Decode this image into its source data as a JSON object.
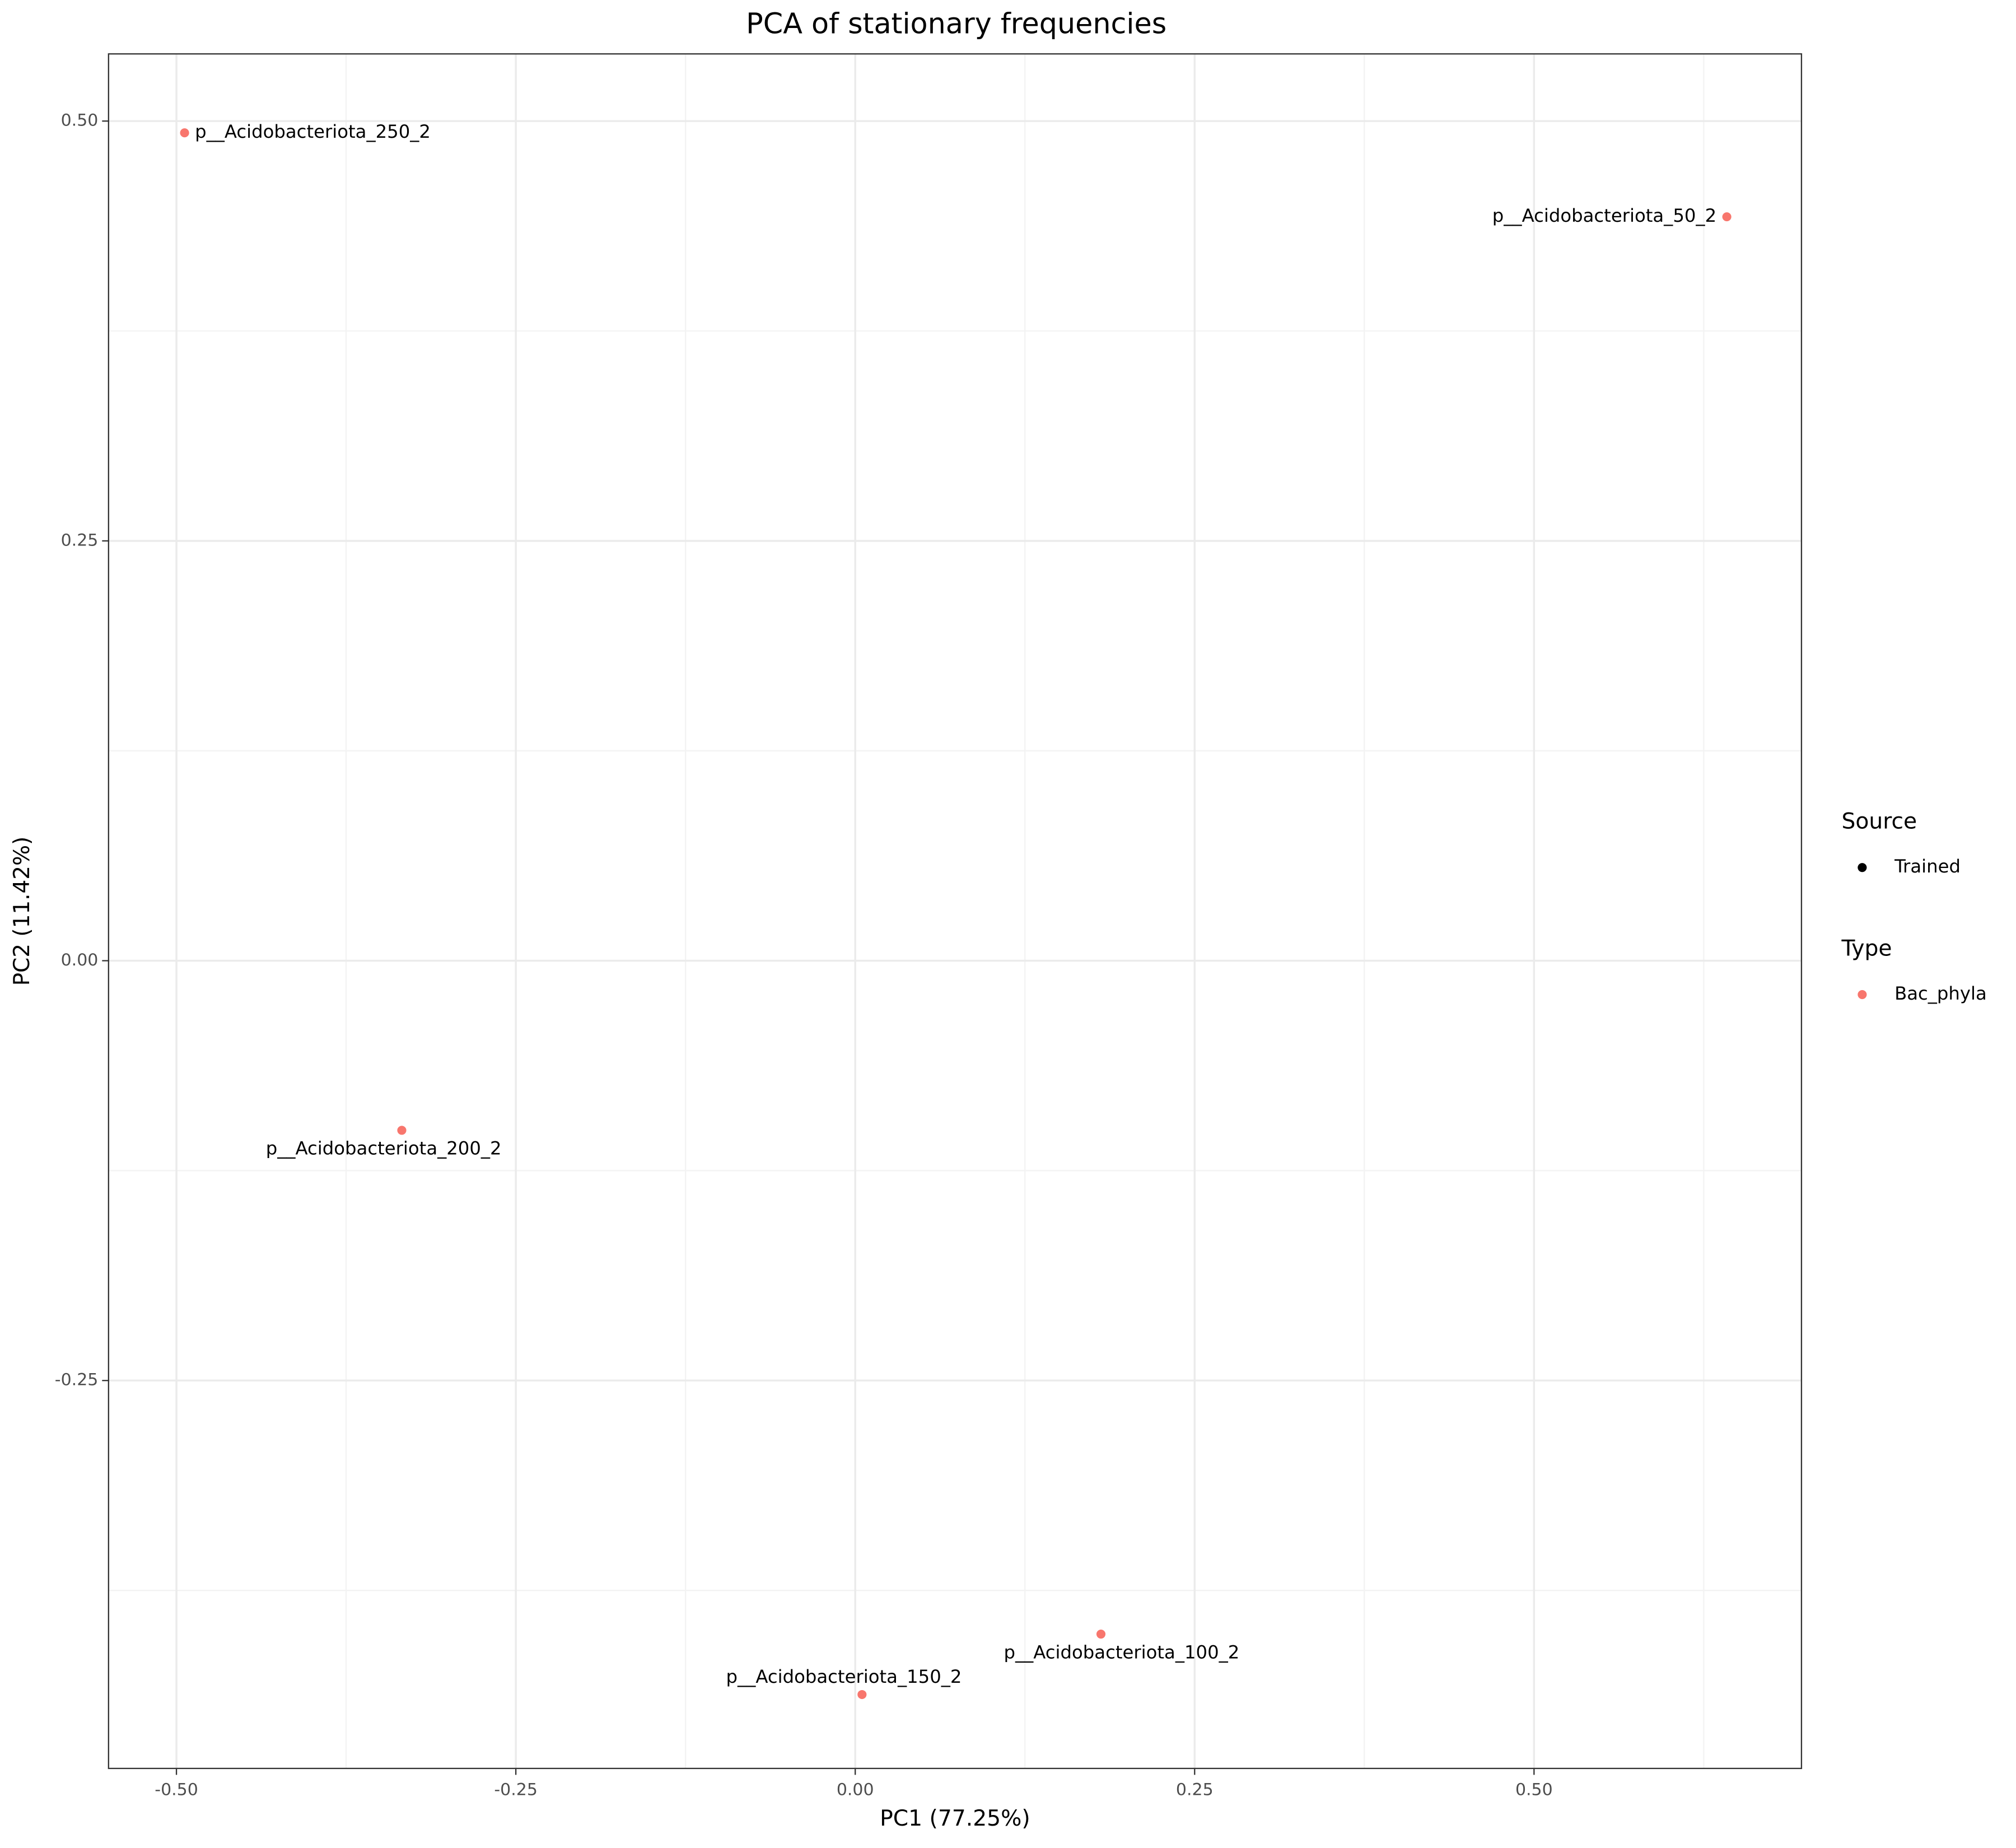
{
  "chart_data": {
    "type": "scatter",
    "title": "PCA of stationary frequencies",
    "x_label": "PC1 (77.25%)",
    "y_label": "PC2 (11.42%)",
    "labels": [
      "p__Acidobacteriota_250_2",
      "p__Acidobacteriota_50_2",
      "p__Acidobacteriota_200_2",
      "p__Acidobacteriota_100_2",
      "p__Acidobacteriota_150_2"
    ],
    "series": [
      {
        "name": "Bac_phyla",
        "color": "#F8766D",
        "x": [
          -0.494,
          0.642,
          -0.334,
          0.181,
          0.005
        ],
        "values": [
          0.493,
          0.443,
          -0.101,
          -0.401,
          -0.437
        ]
      }
    ],
    "xlim": [
      -0.55,
      0.697
    ],
    "ylim": [
      -0.481,
      0.54
    ],
    "xticks": [
      {
        "value": -0.5,
        "label": "-0.50"
      },
      -0.25,
      {
        "value": 0,
        "label": "0.00"
      },
      0.25,
      {
        "value": 0.5,
        "label": "0.50"
      }
    ],
    "yticks": [
      -0.25,
      {
        "value": 0,
        "label": "0.00"
      },
      0.25,
      {
        "value": 0.5,
        "label": "0.50"
      }
    ],
    "grid": true,
    "legend": [
      {
        "title": "Source",
        "items": [
          {
            "label": "Trained",
            "color": "#000000"
          }
        ]
      },
      {
        "title": "Type",
        "items": [
          {
            "label": "Bac_phyla",
            "color": "#F8766D"
          }
        ]
      }
    ]
  }
}
